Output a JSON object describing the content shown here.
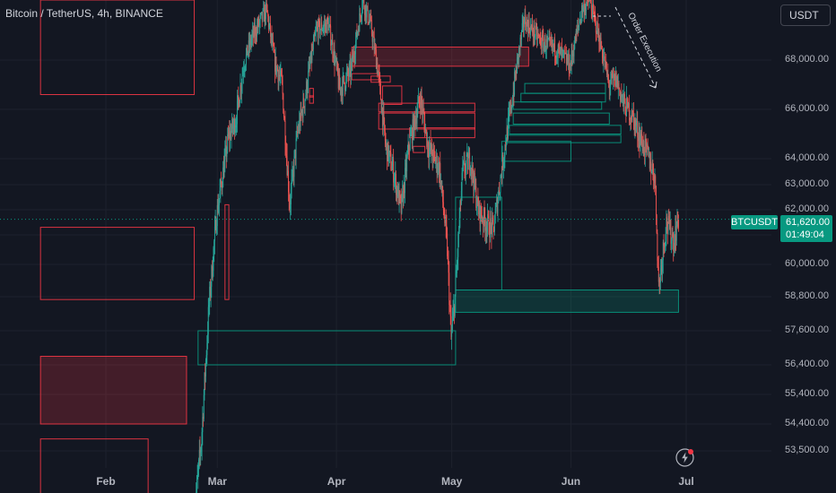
{
  "header": {
    "title": "Bitcoin / TetherUS, 4h, BINANCE"
  },
  "currency_button": "USDT",
  "annotation": "Order Execution",
  "last_price": {
    "symbol": "BTCUSDT",
    "price": "61,620.00",
    "countdown": "01:49:04"
  },
  "colors": {
    "background": "#131722",
    "up": "#26a69a",
    "down": "#ef5350",
    "up_zone": "#089981",
    "down_zone": "#f23645",
    "text": "#b2b5be"
  },
  "chart_data": {
    "type": "candlestick",
    "symbol": "BTCUSDT",
    "interval": "4h",
    "exchange": "BINANCE",
    "y_ticks": [
      "68,000.00",
      "66,000.00",
      "64,000.00",
      "63,000.00",
      "62,000.00",
      "61,000.00",
      "60,000.00",
      "58,800.00",
      "57,600.00",
      "56,400.00",
      "55,400.00",
      "54,400.00",
      "53,500.00"
    ],
    "x_ticks": [
      "Feb",
      "Mar",
      "Apr",
      "May",
      "Jun",
      "Jul"
    ],
    "price_path": [
      [
        "2024-02-24",
        51200
      ],
      [
        "2024-02-26",
        53800
      ],
      [
        "2024-02-28",
        58500
      ],
      [
        "2024-03-01",
        61800
      ],
      [
        "2024-03-04",
        64800
      ],
      [
        "2024-03-06",
        65600
      ],
      [
        "2024-03-08",
        67800
      ],
      [
        "2024-03-10",
        69000
      ],
      [
        "2024-03-12",
        69800
      ],
      [
        "2024-03-14",
        70500
      ],
      [
        "2024-03-16",
        68000
      ],
      [
        "2024-03-18",
        67000
      ],
      [
        "2024-03-20",
        62200
      ],
      [
        "2024-03-22",
        65000
      ],
      [
        "2024-03-24",
        66500
      ],
      [
        "2024-03-27",
        69500
      ],
      [
        "2024-03-30",
        69800
      ],
      [
        "2024-04-02",
        66800
      ],
      [
        "2024-04-05",
        67600
      ],
      [
        "2024-04-08",
        71000
      ],
      [
        "2024-04-10",
        69800
      ],
      [
        "2024-04-12",
        67500
      ],
      [
        "2024-04-14",
        64500
      ],
      [
        "2024-04-16",
        63500
      ],
      [
        "2024-04-18",
        62000
      ],
      [
        "2024-04-20",
        64500
      ],
      [
        "2024-04-23",
        66500
      ],
      [
        "2024-04-25",
        64500
      ],
      [
        "2024-04-28",
        63600
      ],
      [
        "2024-04-30",
        60500
      ],
      [
        "2024-05-01",
        57300
      ],
      [
        "2024-05-02",
        58800
      ],
      [
        "2024-05-04",
        63500
      ],
      [
        "2024-05-06",
        64000
      ],
      [
        "2024-05-08",
        62000
      ],
      [
        "2024-05-10",
        61500
      ],
      [
        "2024-05-12",
        61200
      ],
      [
        "2024-05-15",
        64500
      ],
      [
        "2024-05-17",
        66500
      ],
      [
        "2024-05-20",
        70000
      ],
      [
        "2024-05-22",
        69500
      ],
      [
        "2024-05-25",
        68800
      ],
      [
        "2024-05-28",
        68600
      ],
      [
        "2024-06-01",
        67800
      ],
      [
        "2024-06-04",
        70500
      ],
      [
        "2024-06-06",
        71000
      ],
      [
        "2024-06-08",
        69500
      ],
      [
        "2024-06-11",
        67000
      ],
      [
        "2024-06-13",
        67200
      ],
      [
        "2024-06-15",
        66200
      ],
      [
        "2024-06-17",
        65800
      ],
      [
        "2024-06-19",
        64900
      ],
      [
        "2024-06-21",
        64200
      ],
      [
        "2024-06-23",
        63300
      ],
      [
        "2024-06-24",
        59200
      ],
      [
        "2024-06-26",
        61500
      ],
      [
        "2024-06-28",
        60800
      ],
      [
        "2024-06-29",
        61620
      ]
    ],
    "supply_zones": [
      {
        "from": "2024-01-15",
        "to": "2024-02-24",
        "low": 58700,
        "high": 61300
      },
      {
        "from": "2024-03-03",
        "to": "2024-03-04",
        "low": 58700,
        "high": 62200
      },
      {
        "from": "2024-01-15",
        "to": "2024-02-24",
        "low": 66600,
        "high": 71000
      },
      {
        "from": "2024-01-15",
        "to": "2024-02-22",
        "low": 54400,
        "high": 56700,
        "filled": true
      },
      {
        "from": "2024-01-15",
        "to": "2024-02-12",
        "low": 51000,
        "high": 53900
      },
      {
        "from": "2024-04-05",
        "to": "2024-05-21",
        "low": 67750,
        "high": 68650,
        "filled": true
      },
      {
        "from": "2024-04-05",
        "to": "2024-04-12",
        "low": 67200,
        "high": 67450
      },
      {
        "from": "2024-04-10",
        "to": "2024-04-15",
        "low": 67100,
        "high": 67350
      },
      {
        "from": "2024-04-13",
        "to": "2024-04-18",
        "low": 66200,
        "high": 66950
      },
      {
        "from": "2024-04-12",
        "to": "2024-05-07",
        "low": 65900,
        "high": 66250
      },
      {
        "from": "2024-04-12",
        "to": "2024-05-07",
        "low": 65200,
        "high": 65850
      },
      {
        "from": "2024-04-20",
        "to": "2024-05-07",
        "low": 64850,
        "high": 65250
      },
      {
        "from": "2024-03-25",
        "to": "2024-03-26",
        "low": 66250,
        "high": 66550
      },
      {
        "from": "2024-03-25",
        "to": "2024-03-26",
        "low": 66500,
        "high": 66850
      },
      {
        "from": "2024-04-21",
        "to": "2024-04-24",
        "low": 64250,
        "high": 64500
      }
    ],
    "demand_zones": [
      {
        "from": "2024-02-25",
        "to": "2024-05-02",
        "low": 56400,
        "high": 57600
      },
      {
        "from": "2024-05-02",
        "to": "2024-06-29",
        "low": 58250,
        "high": 59050,
        "filled": true
      },
      {
        "from": "2024-05-02",
        "to": "2024-05-14",
        "low": 59050,
        "high": 62500
      },
      {
        "from": "2024-05-14",
        "to": "2024-06-01",
        "low": 63900,
        "high": 64700
      },
      {
        "from": "2024-05-15",
        "to": "2024-06-14",
        "low": 64650,
        "high": 64950
      },
      {
        "from": "2024-05-16",
        "to": "2024-06-14",
        "low": 65000,
        "high": 65350
      },
      {
        "from": "2024-05-17",
        "to": "2024-06-11",
        "low": 65400,
        "high": 65850
      },
      {
        "from": "2024-05-17",
        "to": "2024-06-09",
        "low": 66000,
        "high": 66300
      },
      {
        "from": "2024-05-19",
        "to": "2024-06-10",
        "low": 66300,
        "high": 66650
      },
      {
        "from": "2024-05-20",
        "to": "2024-06-10",
        "low": 66650,
        "high": 67050
      }
    ]
  }
}
